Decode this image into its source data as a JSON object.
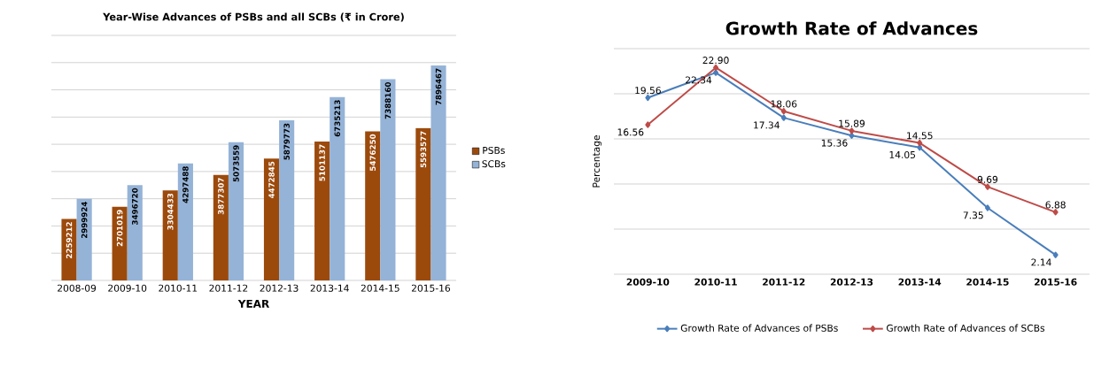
{
  "chart_data": [
    {
      "type": "bar",
      "title": "Year-Wise Advances of PSBs and all SCBs (₹ in Crore)",
      "xlabel": "YEAR",
      "categories": [
        "2008-09",
        "2009-10",
        "2010-11",
        "2011-12",
        "2012-13",
        "2013-14",
        "2014-15",
        "2015-16"
      ],
      "series": [
        {
          "name": "PSBs",
          "color": "#9c4a0c",
          "values": [
            2259212,
            2701019,
            3304433,
            3877307,
            4472845,
            5101137,
            5476250,
            5593577
          ]
        },
        {
          "name": "SCBs",
          "color": "#95b3d7",
          "values": [
            2999924,
            3496720,
            4297488,
            5073559,
            5879773,
            6735213,
            7388160,
            7896467
          ]
        }
      ],
      "ylim": [
        0,
        9000000
      ],
      "yticks": [
        0,
        1000000,
        2000000,
        3000000,
        4000000,
        5000000,
        6000000,
        7000000,
        8000000,
        9000000
      ],
      "grid": "y",
      "legend": "right",
      "tick_labels": "x",
      "data_labels": true
    },
    {
      "type": "line",
      "title": "Growth Rate of Advances",
      "ylabel": "Percentage",
      "categories": [
        "2009-10",
        "2010-11",
        "2011-12",
        "2012-13",
        "2013-14",
        "2014-15",
        "2015-16"
      ],
      "series": [
        {
          "name": "Growth Rate of Advances of PSBs",
          "color": "#4a7ebb",
          "values": [
            19.56,
            22.34,
            17.34,
            15.36,
            14.05,
            7.35,
            2.14
          ],
          "value_labels": [
            "19.56",
            "22.34",
            "17.34",
            "15.36",
            "14.05",
            "7.35",
            "2.14"
          ]
        },
        {
          "name": "Growth Rate of Advances of SCBs",
          "color": "#be4b48",
          "values": [
            16.56,
            22.9,
            18.06,
            15.89,
            14.55,
            9.69,
            6.88
          ],
          "value_labels": [
            "16.56",
            "22.90",
            "18.06",
            "15.89",
            "14.55",
            "9.69",
            "6.88"
          ]
        }
      ],
      "ylim": [
        0,
        25
      ],
      "yticks": [
        0,
        5,
        10,
        15,
        20,
        25
      ],
      "grid": "y",
      "legend": "bottom",
      "marker": "diamond",
      "tick_labels": "x"
    }
  ]
}
